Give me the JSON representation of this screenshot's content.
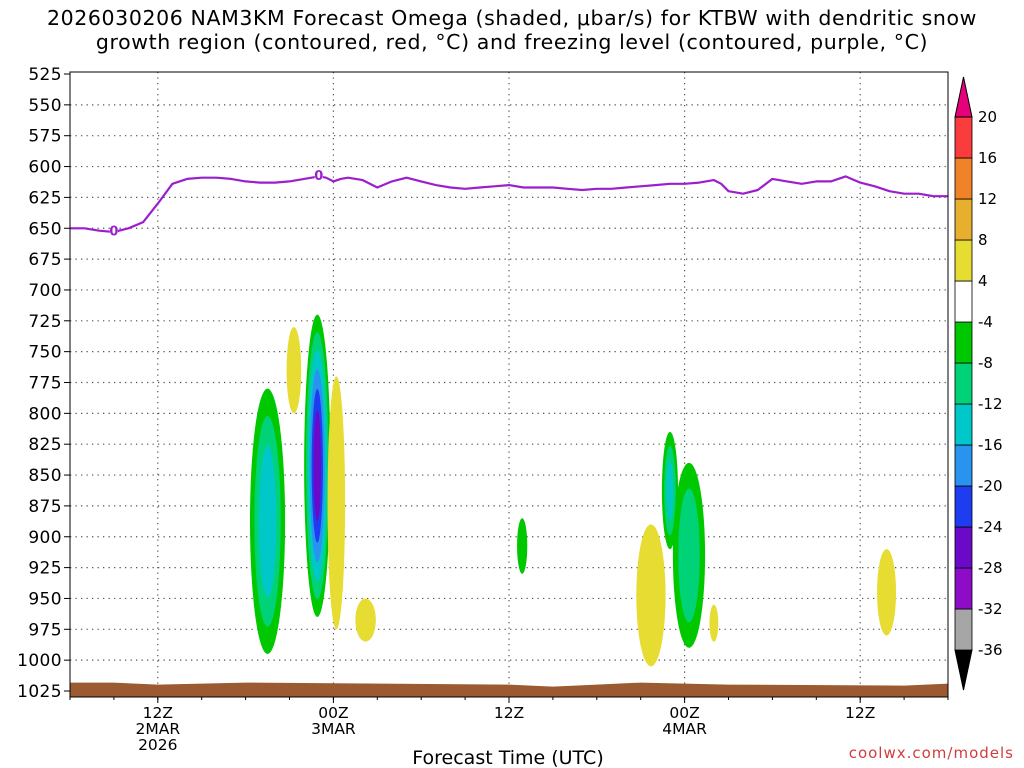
{
  "title": {
    "line1": "2026030206 NAM3KM Forecast Omega (shaded, μbar/s) for KTBW with dendritic snow",
    "line2": "growth region (contoured, red, °C) and freezing level (contoured, purple, °C)"
  },
  "credit": "coolwx.com/models",
  "chart_data": {
    "type": "time-height contour",
    "title": "2026030206 NAM3KM Forecast Omega (shaded, μbar/s) for KTBW with dendritic snow growth region (contoured, red, °C) and freezing level (contoured, purple, °C)",
    "xlabel": "Forecast Time (UTC)",
    "ylabel": "",
    "x_unit": "forecast hours since 2026-03-02 06Z",
    "xlim": [
      0,
      60
    ],
    "ylim": [
      1025,
      525
    ],
    "y_ticks": [
      525,
      550,
      575,
      600,
      625,
      650,
      675,
      700,
      725,
      750,
      775,
      800,
      825,
      850,
      875,
      900,
      925,
      950,
      975,
      1000,
      1025
    ],
    "x_ticks": [
      {
        "hour": 6,
        "lines": [
          "12Z",
          "2MAR",
          "2026"
        ]
      },
      {
        "hour": 18,
        "lines": [
          "00Z",
          "3MAR"
        ]
      },
      {
        "hour": 30,
        "lines": [
          "12Z"
        ]
      },
      {
        "hour": 42,
        "lines": [
          "00Z",
          "4MAR"
        ]
      },
      {
        "hour": 54,
        "lines": [
          "12Z"
        ]
      }
    ],
    "grid": true,
    "freezing_level": {
      "label": "0",
      "color": "#9b1fcd",
      "x": [
        0,
        1,
        2,
        3,
        4,
        5,
        6,
        7,
        8,
        9,
        10,
        11,
        12,
        13,
        14,
        15,
        16,
        17,
        17.5,
        18,
        18.5,
        19,
        20,
        21,
        22,
        23,
        24,
        25,
        26,
        27,
        28,
        29,
        30,
        31,
        32,
        33,
        34,
        35,
        36,
        37,
        38,
        39,
        40,
        41,
        42,
        43,
        44,
        44.5,
        45,
        46,
        47,
        48,
        49,
        50,
        51,
        52,
        53,
        54,
        55,
        56,
        57,
        58,
        59,
        60
      ],
      "y": [
        650,
        650,
        652,
        653,
        650,
        645,
        630,
        614,
        610,
        609,
        609,
        610,
        612,
        613,
        613,
        612,
        610,
        608,
        609,
        612,
        610,
        609,
        611,
        617,
        612,
        609,
        612,
        615,
        617,
        618,
        617,
        616,
        615,
        617,
        617,
        617,
        618,
        619,
        618,
        618,
        617,
        616,
        615,
        614,
        614,
        613,
        611,
        614,
        620,
        622,
        619,
        610,
        612,
        614,
        612,
        612,
        608,
        613,
        616,
        620,
        622,
        622,
        624,
        624
      ],
      "label_points": [
        {
          "x": 3,
          "y": 652
        },
        {
          "x": 17,
          "y": 607
        }
      ]
    },
    "omega_colorbar": {
      "levels": [
        -36,
        -32,
        -28,
        -24,
        -20,
        -16,
        -12,
        -8,
        -4,
        4,
        8,
        12,
        16,
        20
      ],
      "label_levels": [
        -36,
        -32,
        -28,
        -24,
        -20,
        -16,
        -12,
        -8,
        -4,
        4,
        8,
        12,
        16,
        20
      ],
      "colors": [
        "#000000",
        "#a6a6a6",
        "#8c0cc8",
        "#6a0ac8",
        "#1e3cf0",
        "#2894f0",
        "#00c8c8",
        "#00d278",
        "#00c800",
        "#ffffff",
        "#e6dc32",
        "#e6af2d",
        "#f08228",
        "#fa3c3c",
        "#e6007a"
      ]
    },
    "omega_blobs": [
      {
        "hour": 13.5,
        "p_top": 780,
        "p_bottom": 995,
        "half_width_h": 1.2,
        "min": -16
      },
      {
        "hour": 15.3,
        "p_top": 730,
        "p_bottom": 800,
        "half_width_h": 0.5,
        "max": 6
      },
      {
        "hour": 16.9,
        "p_top": 720,
        "p_bottom": 965,
        "half_width_h": 0.9,
        "min": -28
      },
      {
        "hour": 18.2,
        "p_top": 770,
        "p_bottom": 975,
        "half_width_h": 0.6,
        "max": 8
      },
      {
        "hour": 20.2,
        "p_top": 950,
        "p_bottom": 985,
        "half_width_h": 0.7,
        "max": 6
      },
      {
        "hour": 30.9,
        "p_top": 885,
        "p_bottom": 930,
        "half_width_h": 0.35,
        "min": -6
      },
      {
        "hour": 39.7,
        "p_top": 890,
        "p_bottom": 1005,
        "half_width_h": 1.0,
        "max": 6
      },
      {
        "hour": 41.0,
        "p_top": 815,
        "p_bottom": 910,
        "half_width_h": 0.55,
        "min": -14
      },
      {
        "hour": 42.3,
        "p_top": 840,
        "p_bottom": 990,
        "half_width_h": 1.1,
        "min": -12
      },
      {
        "hour": 44.0,
        "p_top": 955,
        "p_bottom": 985,
        "half_width_h": 0.3,
        "max": 5
      },
      {
        "hour": 55.8,
        "p_top": 910,
        "p_bottom": 980,
        "half_width_h": 0.65,
        "max": 7
      }
    ]
  }
}
